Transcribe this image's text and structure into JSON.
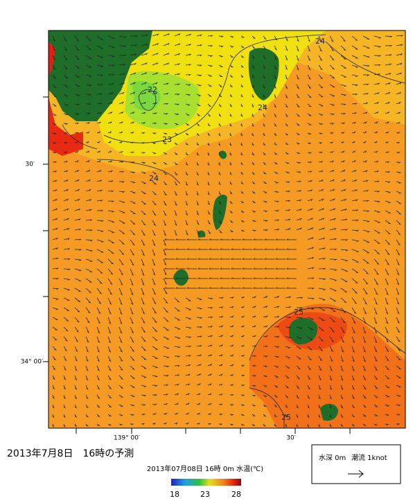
{
  "title": "2013年7月8日　16時の予測",
  "subtitle": "2013年07月08日 16時 0m 水温(℃)",
  "legend_box": {
    "depth": "水深 0m",
    "current": "潮流 1knot"
  },
  "axes": {
    "y_labels": [
      "30′",
      "34° 00′"
    ],
    "x_labels": [
      "139° 00′",
      "30′"
    ]
  },
  "contour_labels": [
    22,
    23,
    24,
    24,
    24,
    25,
    25
  ],
  "colorbar": {
    "ticks": [
      18,
      23,
      28
    ]
  }
}
